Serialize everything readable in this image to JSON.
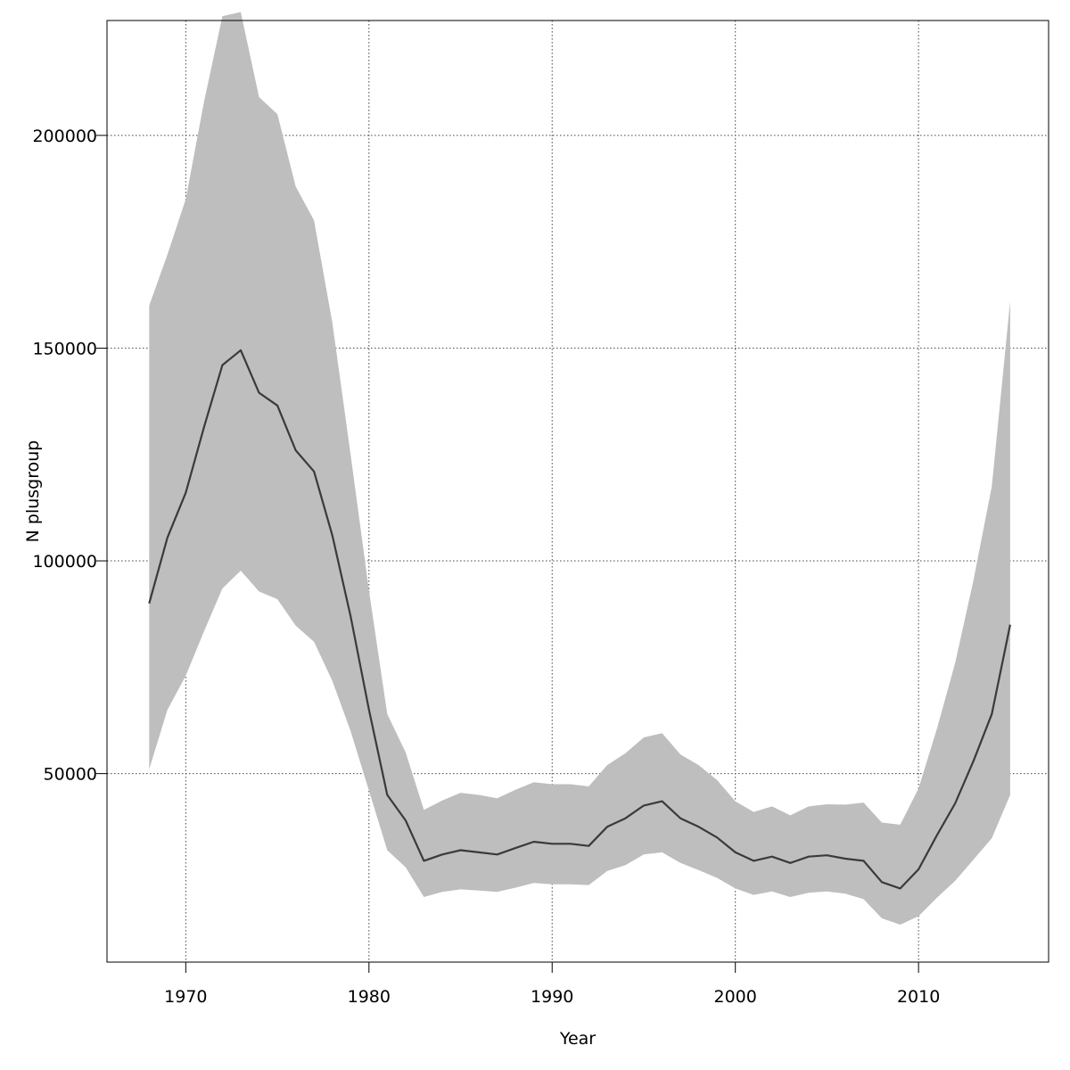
{
  "chart_data": {
    "type": "area",
    "xlabel": "Year",
    "ylabel": "N plusgroup",
    "xlim": [
      1965.7,
      2017.1
    ],
    "ylim": [
      5700,
      227000
    ],
    "x_ticks": [
      1970,
      1980,
      1990,
      2000,
      2010
    ],
    "y_ticks": [
      50000,
      100000,
      150000,
      200000
    ],
    "grid": true,
    "line_color": "#3a3a3a",
    "band_color": "#bebebe",
    "x": [
      1968,
      1969,
      1970,
      1971,
      1972,
      1973,
      1974,
      1975,
      1976,
      1977,
      1978,
      1979,
      1980,
      1981,
      1982,
      1983,
      1984,
      1985,
      1986,
      1987,
      1988,
      1989,
      1990,
      1991,
      1992,
      1993,
      1994,
      1995,
      1996,
      1997,
      1998,
      1999,
      2000,
      2001,
      2002,
      2003,
      2004,
      2005,
      2006,
      2007,
      2008,
      2009,
      2010,
      2011,
      2012,
      2013,
      2014,
      2015
    ],
    "series": [
      {
        "values": [
          90000,
          105500,
          116000,
          131500,
          146000,
          149500,
          139500,
          136500,
          126000,
          121000,
          106000,
          87000,
          65000,
          45000,
          39000,
          29500,
          31000,
          32000,
          31500,
          31000,
          32500,
          34000,
          33500,
          33500,
          33000,
          37500,
          39500,
          42500,
          43500,
          39500,
          37500,
          35000,
          31500,
          29500,
          30500,
          29000,
          30500,
          30800,
          30000,
          29500,
          24500,
          23000,
          27500,
          35500,
          43000,
          53000,
          64000,
          85000
        ]
      }
    ],
    "band": {
      "upper": [
        160000,
        172000,
        185000,
        208000,
        228000,
        229000,
        209000,
        205000,
        188000,
        180000,
        156000,
        125000,
        93000,
        64000,
        55000,
        41500,
        43700,
        45500,
        45000,
        44200,
        46200,
        48000,
        47500,
        47500,
        47000,
        52000,
        54800,
        58500,
        59500,
        54500,
        52000,
        48500,
        43500,
        41000,
        42300,
        40200,
        42300,
        42800,
        42700,
        43200,
        38500,
        38000,
        46500,
        60500,
        76000,
        95500,
        117500,
        161000
      ],
      "lower": [
        51000,
        65000,
        73000,
        83500,
        93500,
        97700,
        92800,
        91000,
        84800,
        81000,
        71800,
        60000,
        46000,
        32000,
        28000,
        21000,
        22200,
        22800,
        22500,
        22200,
        23200,
        24300,
        24000,
        24000,
        23800,
        27100,
        28500,
        31000,
        31500,
        29000,
        27300,
        25500,
        23000,
        21500,
        22300,
        21000,
        22000,
        22300,
        21800,
        20500,
        16000,
        14500,
        16500,
        20800,
        24800,
        29800,
        34800,
        45000
      ]
    }
  }
}
